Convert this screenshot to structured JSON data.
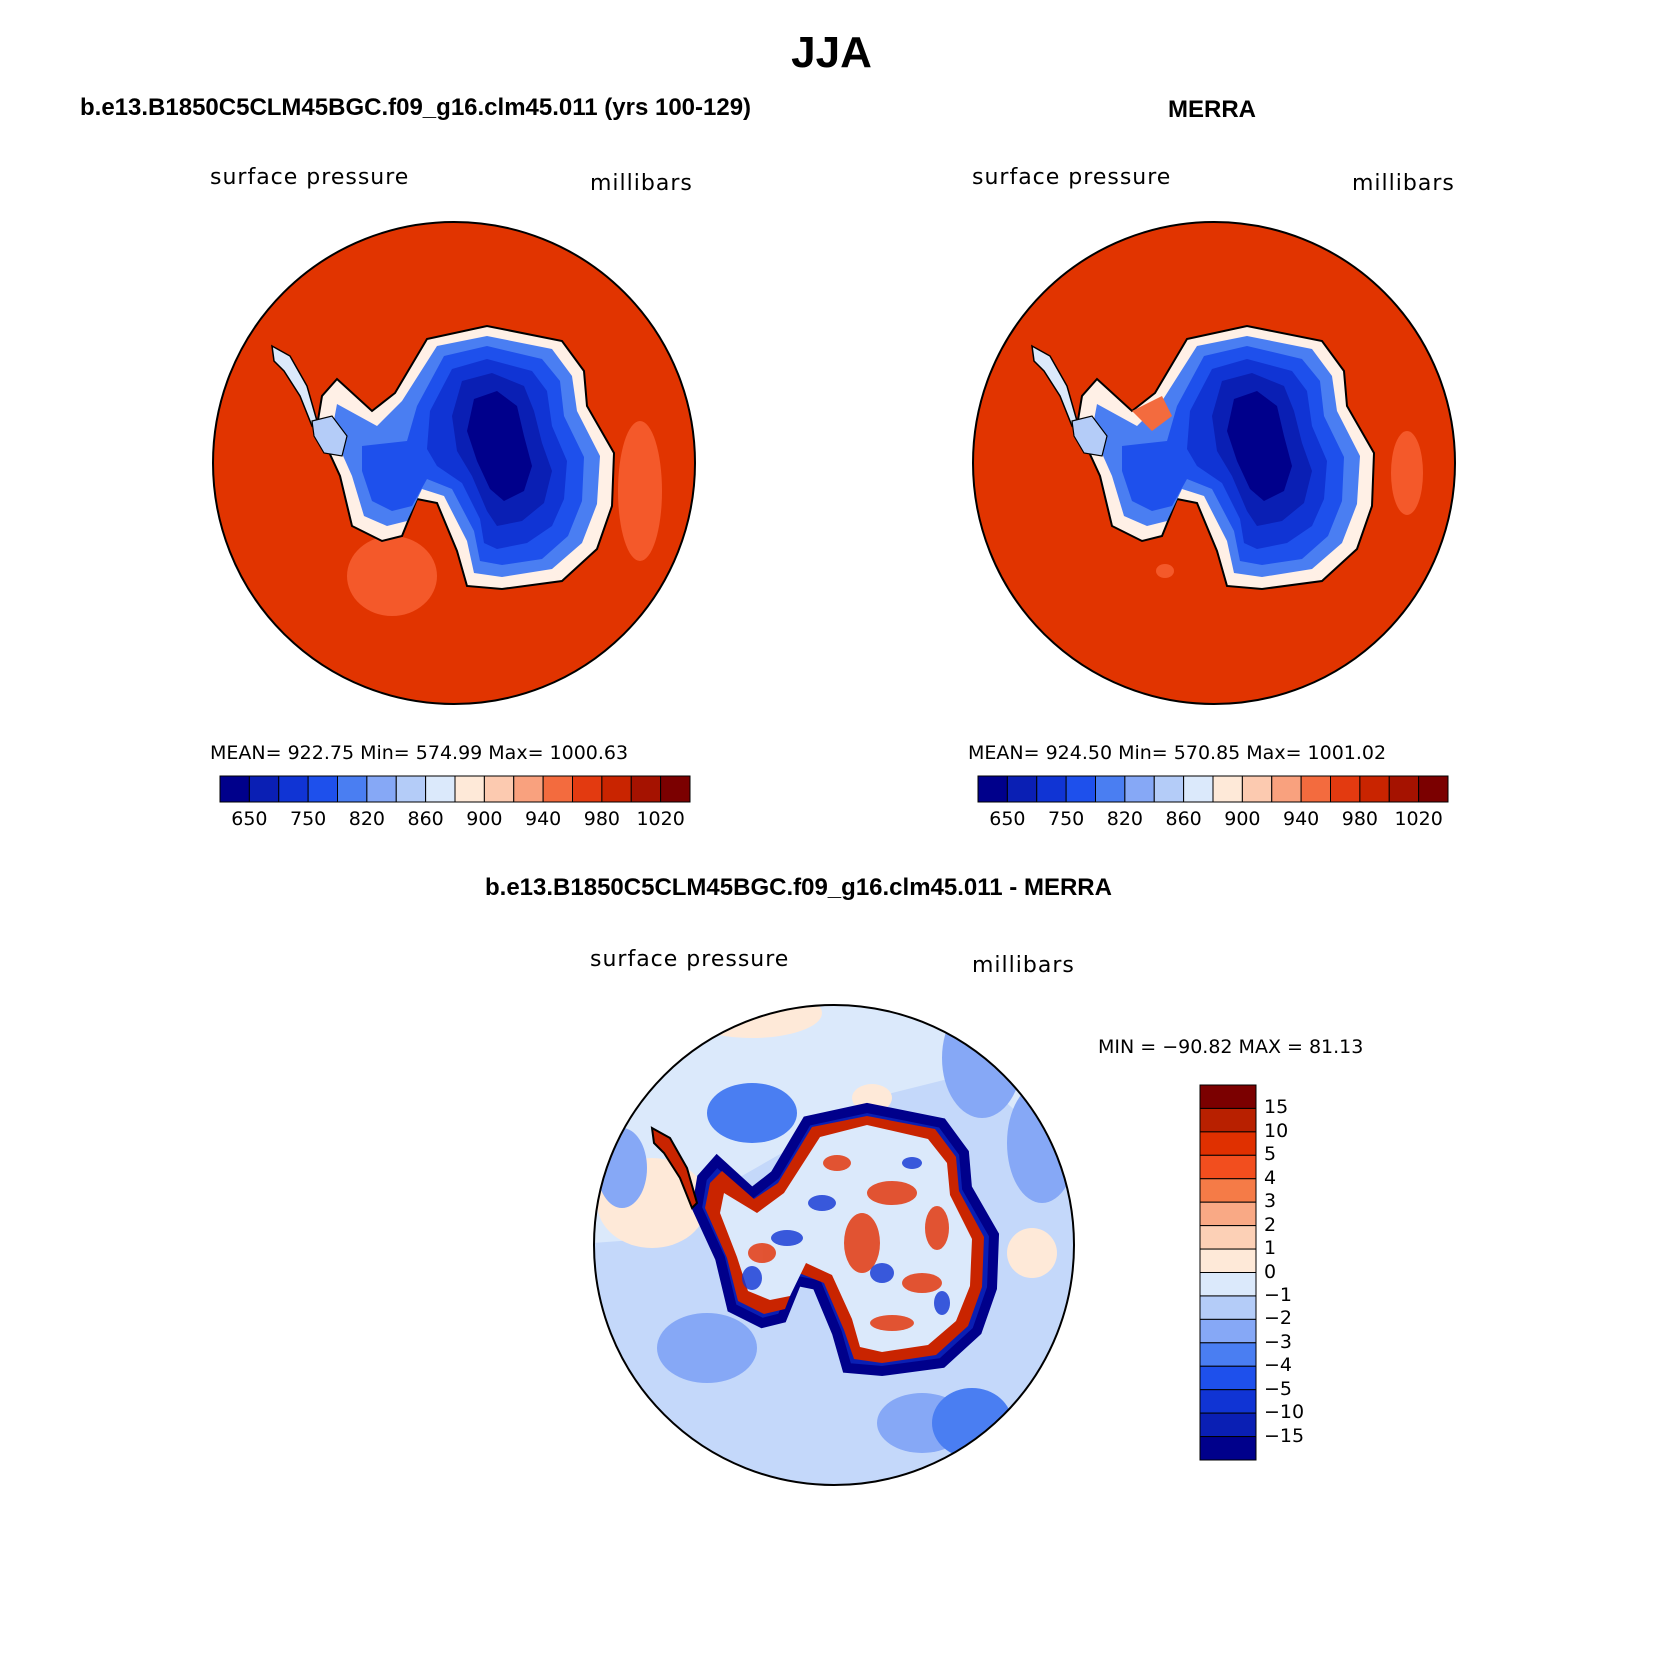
{
  "header": {
    "title": "JJA"
  },
  "panels": [
    {
      "title": "b.e13.B1850C5CLM45BGC.f09_g16.clm45.011 (yrs 100-129)",
      "variable": "surface pressure",
      "units": "millibars",
      "stats": "MEAN= 922.75   Min= 574.99   Max= 1000.63"
    },
    {
      "title": "MERRA",
      "variable": "surface pressure",
      "units": "millibars",
      "stats": "MEAN= 924.50   Min= 570.85   Max= 1001.02"
    },
    {
      "title": "b.e13.B1850C5CLM45BGC.f09_g16.clm45.011 - MERRA",
      "variable": "surface pressure",
      "units": "millibars",
      "stats": "MIN = −90.82 MAX =   81.13"
    }
  ],
  "colorbar_abs": {
    "labels": [
      "650",
      "750",
      "820",
      "860",
      "900",
      "940",
      "980",
      "1020"
    ],
    "colors": [
      "#00008b",
      "#0a1fb4",
      "#1034d4",
      "#1e50ec",
      "#4a7ef2",
      "#86a8f6",
      "#b4ccf8",
      "#dbe9fb",
      "#fee9d8",
      "#fccab0",
      "#f9a17e",
      "#f36b3e",
      "#e33a10",
      "#c92400",
      "#a51200",
      "#7b0000"
    ]
  },
  "colorbar_diff": {
    "labels": [
      "15",
      "10",
      "5",
      "4",
      "3",
      "2",
      "1",
      "0",
      "−1",
      "−2",
      "−3",
      "−4",
      "−5",
      "−10",
      "−15"
    ],
    "colors": [
      "#7b0000",
      "#b82000",
      "#e03000",
      "#f24e1e",
      "#f57b47",
      "#f9a985",
      "#fcd0b6",
      "#fee9d8",
      "#dbe9fb",
      "#b4ccf8",
      "#86a8f6",
      "#4a7ef2",
      "#1e50ec",
      "#1034d4",
      "#0a1fb4",
      "#00008b"
    ]
  },
  "colors": {
    "ocean_high": "#e13400",
    "ocean_mid": "#f4592a",
    "diff_bg": "#c4d8fa"
  }
}
